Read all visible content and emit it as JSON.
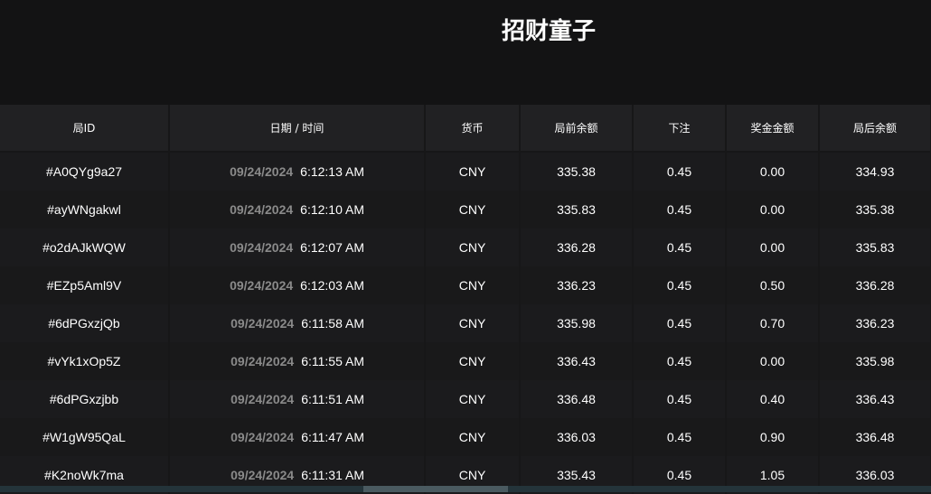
{
  "title": "招财童子",
  "headers": [
    "局ID",
    "日期 / 时间",
    "货币",
    "局前余额",
    "下注",
    "奖金金额",
    "局后余额"
  ],
  "rows": [
    {
      "id": "#A0QYg9a27",
      "date": "09/24/2024",
      "time": "6:12:13 AM",
      "currency": "CNY",
      "before": "335.38",
      "bet": "0.45",
      "win": "0.00",
      "after": "334.93"
    },
    {
      "id": "#ayWNgakwl",
      "date": "09/24/2024",
      "time": "6:12:10 AM",
      "currency": "CNY",
      "before": "335.83",
      "bet": "0.45",
      "win": "0.00",
      "after": "335.38"
    },
    {
      "id": "#o2dAJkWQW",
      "date": "09/24/2024",
      "time": "6:12:07 AM",
      "currency": "CNY",
      "before": "336.28",
      "bet": "0.45",
      "win": "0.00",
      "after": "335.83"
    },
    {
      "id": "#EZp5Aml9V",
      "date": "09/24/2024",
      "time": "6:12:03 AM",
      "currency": "CNY",
      "before": "336.23",
      "bet": "0.45",
      "win": "0.50",
      "after": "336.28"
    },
    {
      "id": "#6dPGxzjQb",
      "date": "09/24/2024",
      "time": "6:11:58 AM",
      "currency": "CNY",
      "before": "335.98",
      "bet": "0.45",
      "win": "0.70",
      "after": "336.23"
    },
    {
      "id": "#vYk1xOp5Z",
      "date": "09/24/2024",
      "time": "6:11:55 AM",
      "currency": "CNY",
      "before": "336.43",
      "bet": "0.45",
      "win": "0.00",
      "after": "335.98"
    },
    {
      "id": "#6dPGxzjbb",
      "date": "09/24/2024",
      "time": "6:11:51 AM",
      "currency": "CNY",
      "before": "336.48",
      "bet": "0.45",
      "win": "0.40",
      "after": "336.43"
    },
    {
      "id": "#W1gW95QaL",
      "date": "09/24/2024",
      "time": "6:11:47 AM",
      "currency": "CNY",
      "before": "336.03",
      "bet": "0.45",
      "win": "0.90",
      "after": "336.48"
    },
    {
      "id": "#K2noWk7ma",
      "date": "09/24/2024",
      "time": "6:11:31 AM",
      "currency": "CNY",
      "before": "335.43",
      "bet": "0.45",
      "win": "1.05",
      "after": "336.03"
    }
  ]
}
